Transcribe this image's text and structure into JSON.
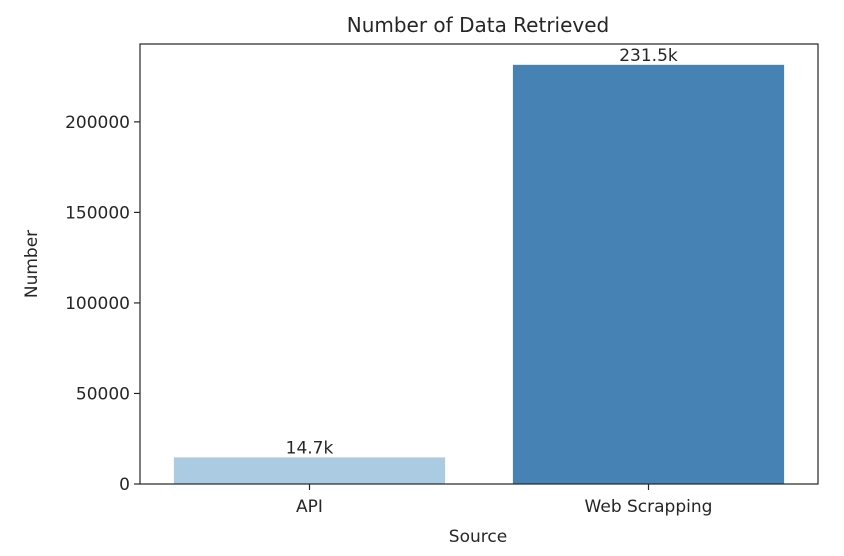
{
  "chart_data": {
    "type": "bar",
    "title": "Number of Data Retrieved",
    "xlabel": "Source",
    "ylabel": "Number",
    "categories": [
      "API",
      "Web Scrapping"
    ],
    "values": [
      14700,
      231500
    ],
    "data_labels": [
      "14.7k",
      "231.5k"
    ],
    "colors": [
      "#abcbe2",
      "#4682b4"
    ],
    "ylim": [
      0,
      243000
    ],
    "yticks": [
      0,
      50000,
      100000,
      150000,
      200000
    ],
    "ytick_labels": [
      "0",
      "50000",
      "100000",
      "150000",
      "200000"
    ],
    "grid": false,
    "legend": null
  }
}
